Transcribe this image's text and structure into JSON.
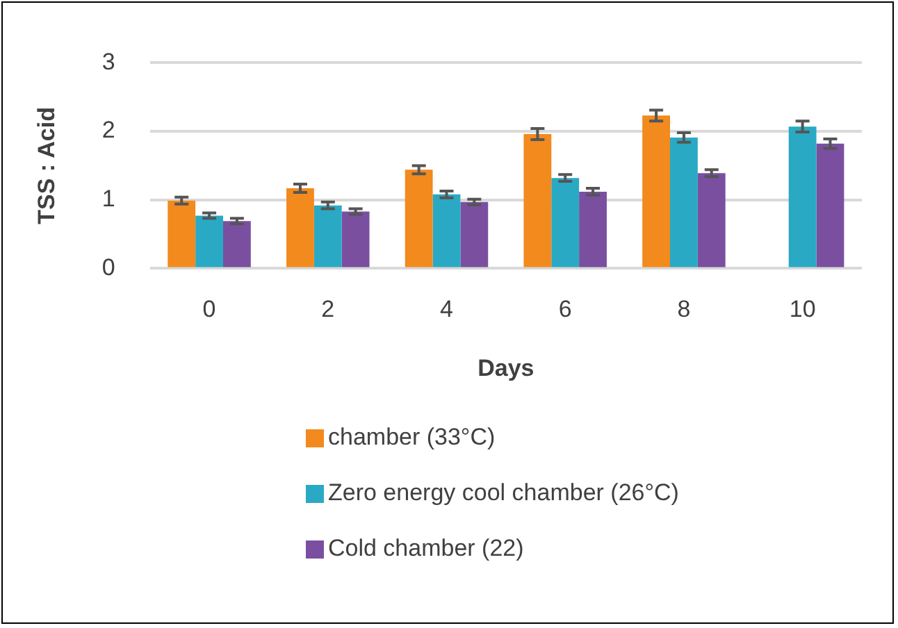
{
  "chart_data": {
    "type": "bar",
    "xlabel": "Days",
    "ylabel": "TSS : Acid",
    "categories": [
      "0",
      "2",
      "4",
      "6",
      "8",
      "10"
    ],
    "series": [
      {
        "name": "chamber (33°C)",
        "color": "#f28a1e",
        "values": [
          0.99,
          1.17,
          1.44,
          1.96,
          2.23,
          null
        ],
        "errors": [
          0.05,
          0.06,
          0.06,
          0.08,
          0.08,
          null
        ]
      },
      {
        "name": "Zero energy cool chamber (26°C)",
        "color": "#2aa9c4",
        "values": [
          0.77,
          0.92,
          1.08,
          1.32,
          1.91,
          2.07
        ],
        "errors": [
          0.04,
          0.05,
          0.05,
          0.05,
          0.07,
          0.08
        ]
      },
      {
        "name": "Cold chamber (22)",
        "color": "#7a4fa0",
        "values": [
          0.69,
          0.83,
          0.97,
          1.12,
          1.39,
          1.82
        ],
        "errors": [
          0.04,
          0.04,
          0.04,
          0.05,
          0.05,
          0.07
        ]
      }
    ],
    "ylim": [
      0,
      3
    ],
    "yticks": [
      0,
      1,
      2,
      3
    ],
    "grid": "y",
    "legend": "bottom"
  }
}
